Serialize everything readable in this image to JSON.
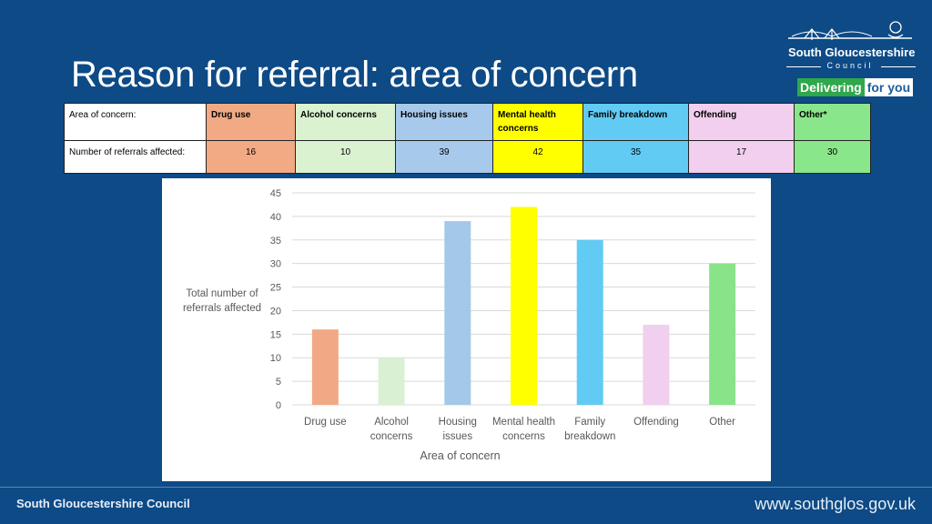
{
  "title": "Reason for referral: area of concern",
  "logo": {
    "name": "South Gloucestershire",
    "sub": "Council",
    "tagline_a": "Delivering",
    "tagline_b": "for you"
  },
  "table": {
    "row1_label": "Area of concern:",
    "row2_label": "Number of referrals affected:",
    "columns": [
      {
        "name": "Drug use",
        "count": "16",
        "color": "#f2aa84"
      },
      {
        "name": "Alcohol concerns",
        "count": "10",
        "color": "#daf2d0"
      },
      {
        "name": "Housing issues",
        "count": "39",
        "color": "#a6c9ec"
      },
      {
        "name": "Mental health concerns",
        "count": "42",
        "color": "#ffff00"
      },
      {
        "name": "Family breakdown",
        "count": "35",
        "color": "#61cbf4"
      },
      {
        "name": "Offending",
        "count": "17",
        "color": "#f2cfee"
      },
      {
        "name": "Other*",
        "count": "30",
        "color": "#8ae68a"
      }
    ]
  },
  "chart_data": {
    "type": "bar",
    "categories": [
      "Drug use",
      "Alcohol concerns",
      "Housing issues",
      "Mental health concerns",
      "Family breakdown",
      "Offending",
      "Other"
    ],
    "category_lines": [
      [
        "Drug use"
      ],
      [
        "Alcohol",
        "concerns"
      ],
      [
        "Housing",
        "issues"
      ],
      [
        "Mental health",
        "concerns"
      ],
      [
        "Family",
        "breakdown"
      ],
      [
        "Offending"
      ],
      [
        "Other"
      ]
    ],
    "values": [
      16,
      10,
      39,
      42,
      35,
      17,
      30
    ],
    "colors": [
      "#f1a985",
      "#d9f1d2",
      "#a4c8ea",
      "#ffff00",
      "#61cbf3",
      "#f1cfee",
      "#89e389"
    ],
    "xlabel": "Area of concern",
    "ylabel_lines": [
      "Total number of",
      "referrals affected"
    ],
    "ylim": [
      0,
      45
    ],
    "yticks": [
      0,
      5,
      10,
      15,
      20,
      25,
      30,
      35,
      40,
      45
    ],
    "grid": true
  },
  "footer": {
    "left": "South Gloucestershire Council",
    "right": "www.southglos.gov.uk"
  }
}
